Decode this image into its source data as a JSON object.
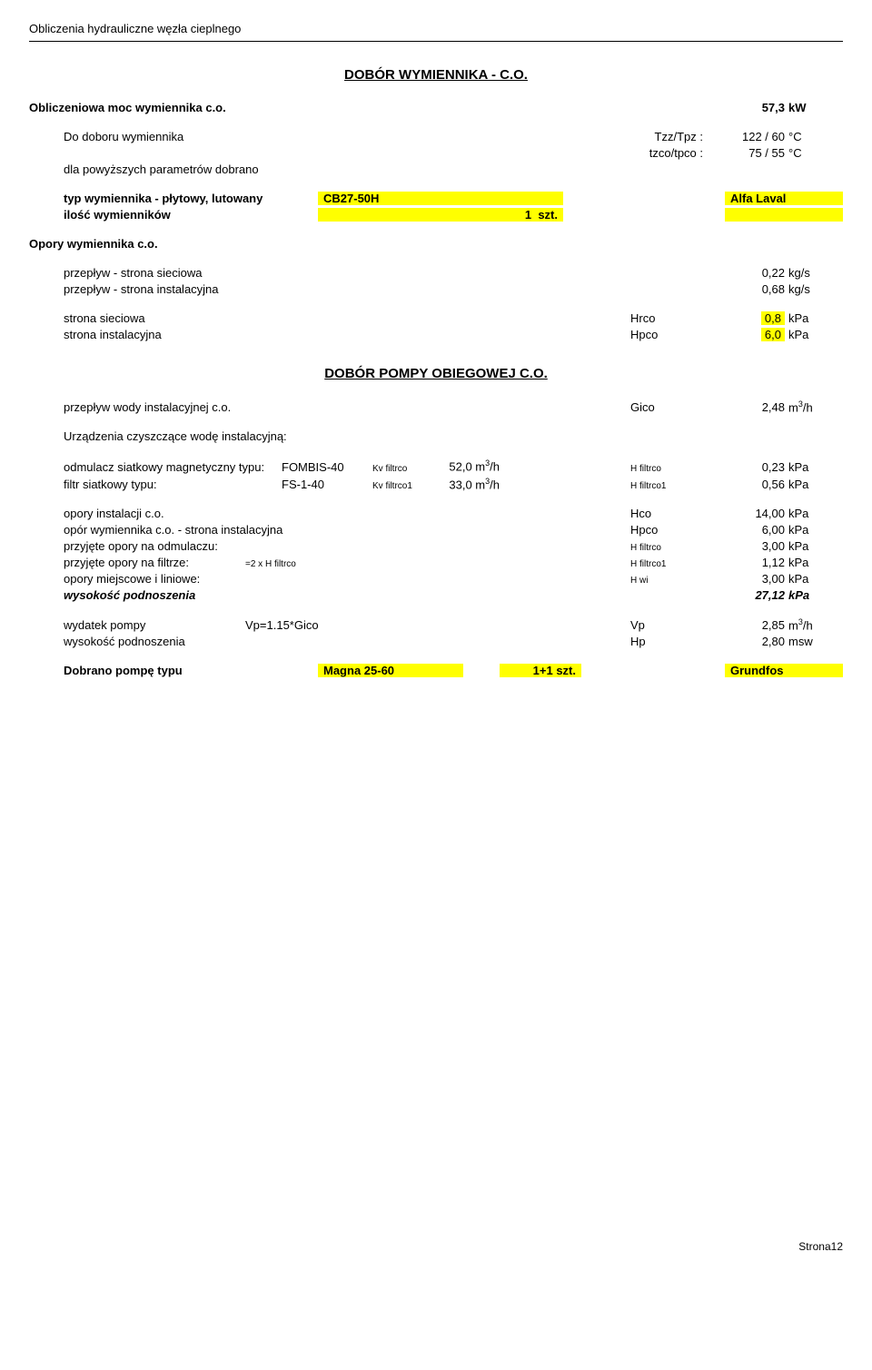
{
  "header": "Obliczenia hydrauliczne węzła cieplnego",
  "section1_title": "DOBÓR WYMIENNIKA - C.O.",
  "moc_label": "Obliczeniowa moc wymiennika c.o.",
  "moc_val": "57,3",
  "moc_unit": "kW",
  "dobor_label": "Do doboru wymiennika",
  "tzz_label": "Tzz/Tpz :",
  "tzz_val": "122 / 60",
  "tzz_unit": "°C",
  "tzco_label": "tzco/tpco :",
  "tzco_val": "75 / 55",
  "tzco_unit": "°C",
  "dla_label": "dla powyższych parametrów dobrano",
  "typ_label": "typ wymiennika - płytowy, lutowany",
  "typ_val": "CB27-50H",
  "typ_brand": "Alfa Laval",
  "ilosc_label": "ilość wymienników",
  "ilosc_val": "1",
  "ilosc_unit": "szt.",
  "opory_label": "Opory wymiennika c.o.",
  "flow_siec_label": "przepływ - strona sieciowa",
  "flow_siec_val": "0,22",
  "flow_siec_unit": "kg/s",
  "flow_inst_label": "przepływ - strona instalacyjna",
  "flow_inst_val": "0,68",
  "flow_inst_unit": "kg/s",
  "siec_label": "strona sieciowa",
  "siec_sym": "Hrco",
  "siec_val": "0,8",
  "siec_unit": "kPa",
  "inst_label": "strona instalacyjna",
  "inst_sym": "Hpco",
  "inst_val": "6,0",
  "inst_unit": "kPa",
  "section2_title": "DOBÓR POMPY OBIEGOWEJ C.O.",
  "przeplyw_label": "przepływ wody instalacyjnej c.o.",
  "przeplyw_sym": "Gico",
  "przeplyw_val": "2,48",
  "przeplyw_unit_pre": "m",
  "przeplyw_unit_sup": "3",
  "przeplyw_unit_post": "/h",
  "urzadz_label": "Urządzenia czyszczące wodę instalacyjną:",
  "odmul_label": "odmulacz siatkowy magnetyczny typu:",
  "odmul_model": "FOMBIS-40",
  "odmul_kv_lbl": "Kv filtrco",
  "odmul_kv_val": "52,0",
  "odmul_sym": "H filtrco",
  "odmul_val": "0,23",
  "odmul_unit": "kPa",
  "filtr_label": "filtr siatkowy typu:",
  "filtr_model": "FS-1-40",
  "filtr_kv_lbl": "Kv filtrco1",
  "filtr_kv_val": "33,0",
  "filtr_sym": "H filtrco1",
  "filtr_val": "0,56",
  "filtr_unit": "kPa",
  "op_inst_label": "opory instalacji c.o.",
  "op_inst_sym": "Hco",
  "op_inst_val": "14,00",
  "op_inst_unit": "kPa",
  "op_wym_label": "opór wymiennika c.o. - strona instalacyjna",
  "op_wym_sym": "Hpco",
  "op_wym_val": "6,00",
  "op_wym_unit": "kPa",
  "op_odm_label": "przyjęte opory na odmulaczu:",
  "op_odm_sym": "H filtrco",
  "op_odm_val": "3,00",
  "op_odm_unit": "kPa",
  "op_fil_label": "przyjęte opory na filtrze:",
  "op_fil_eq": "=2 x H filtrco",
  "op_fil_sym": "H filtrco1",
  "op_fil_val": "1,12",
  "op_fil_unit": "kPa",
  "op_miej_label": "opory miejscowe i liniowe:",
  "op_miej_sym": "H wi",
  "op_miej_val": "3,00",
  "op_miej_unit": "kPa",
  "wys_label": "wysokość podnoszenia",
  "wys_val": "27,12",
  "wys_unit": "kPa",
  "wyd_label": "wydatek pompy",
  "wyd_eq": "Vp=1.15*Gico",
  "wyd_sym": "Vp",
  "wyd_val": "2,85",
  "wys2_label": "wysokość podnoszenia",
  "wys2_sym": "Hp",
  "wys2_val": "2,80",
  "wys2_unit": "msw",
  "dobr_label": "Dobrano pompę typu",
  "dobr_model": "Magna 25-60",
  "dobr_qty": "1+1 szt.",
  "dobr_brand": "Grundfos",
  "footer": "Strona12"
}
